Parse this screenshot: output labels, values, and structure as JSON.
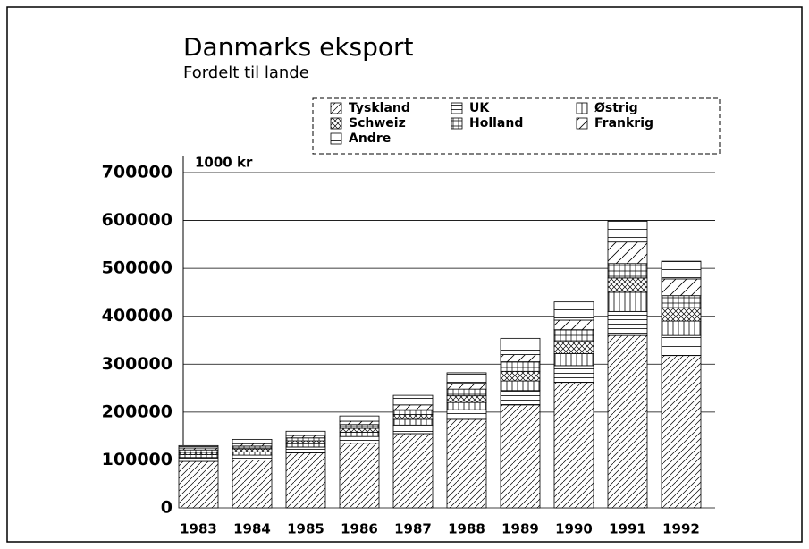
{
  "chart_data": {
    "type": "stacked_bar",
    "title": "Danmarks eksport",
    "subtitle": "Fordelt til lande",
    "y_label": "1000 kr",
    "categories": [
      "1983",
      "1984",
      "1985",
      "1986",
      "1987",
      "1988",
      "1989",
      "1990",
      "1991",
      "1992"
    ],
    "series": [
      {
        "name": "Tyskland",
        "color": "#000",
        "pattern": "diagonal",
        "values": [
          97000,
          100000,
          115000,
          135000,
          155000,
          185000,
          215000,
          262000,
          360000,
          318000
        ]
      },
      {
        "name": "UK",
        "color": "#000",
        "pattern": "horizontal",
        "values": [
          8000,
          10000,
          12000,
          14000,
          18000,
          20000,
          30000,
          35000,
          50000,
          42000
        ]
      },
      {
        "name": "Østrig",
        "color": "#000",
        "pattern": "vertical",
        "values": [
          6000,
          7000,
          7000,
          9000,
          12000,
          15000,
          20000,
          25000,
          40000,
          30000
        ]
      },
      {
        "name": "Schweiz",
        "color": "#000",
        "pattern": "cross",
        "values": [
          5000,
          6000,
          6000,
          8000,
          10000,
          14000,
          20000,
          25000,
          30000,
          28000
        ]
      },
      {
        "name": "Holland",
        "color": "#000",
        "pattern": "grid",
        "values": [
          5000,
          6000,
          6000,
          8000,
          10000,
          14000,
          20000,
          25000,
          30000,
          25000
        ]
      },
      {
        "name": "Frankrig",
        "color": "#000",
        "pattern": "diagonal-wide",
        "values": [
          4000,
          5000,
          5000,
          7000,
          10000,
          12000,
          15000,
          20000,
          45000,
          35000
        ]
      },
      {
        "name": "Andre",
        "color": "#000",
        "pattern": "horizontal-wide",
        "values": [
          5000,
          9000,
          9000,
          11000,
          20000,
          22000,
          34000,
          38000,
          45000,
          37000
        ]
      }
    ],
    "ylim": [
      0,
      700000
    ],
    "yticks": [
      0,
      100000,
      200000,
      300000,
      400000,
      500000,
      600000,
      700000
    ],
    "grid": true
  }
}
